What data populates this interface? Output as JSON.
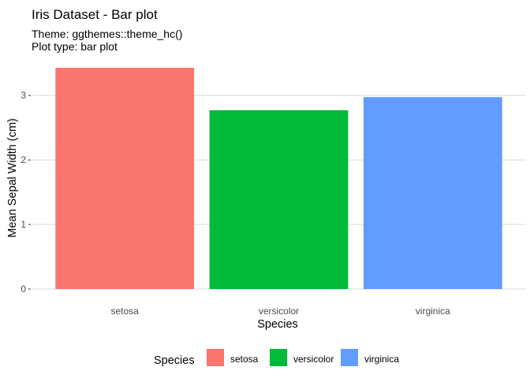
{
  "chart_data": {
    "type": "bar",
    "title": "Iris Dataset - Bar plot",
    "subtitle_lines": [
      "Theme: ggthemes::theme_hc()",
      "Plot type: bar plot"
    ],
    "xlabel": "Species",
    "ylabel": "Mean Sepal Width (cm)",
    "categories": [
      "setosa",
      "versicolor",
      "virginica"
    ],
    "values": [
      3.428,
      2.77,
      2.974
    ],
    "colors": [
      "#F8766D",
      "#00BA38",
      "#619CFF"
    ],
    "ylim": [
      0,
      3.6
    ],
    "yticks": [
      0,
      1,
      2,
      3
    ],
    "grid": "horizontal",
    "legend": {
      "title": "Species",
      "position": "bottom",
      "entries": [
        "setosa",
        "versicolor",
        "virginica"
      ]
    }
  }
}
